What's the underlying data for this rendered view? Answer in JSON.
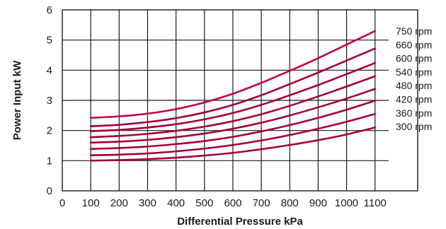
{
  "chart_data": {
    "type": "line",
    "title": "",
    "xlabel": "Differential Pressure kPa",
    "ylabel": "Power Input kW",
    "xlim": [
      0,
      1250
    ],
    "ylim": [
      0,
      6
    ],
    "x_ticks": [
      0,
      100,
      200,
      300,
      400,
      500,
      600,
      700,
      800,
      900,
      1000,
      1100
    ],
    "y_ticks": [
      0,
      1,
      2,
      3,
      4,
      5,
      6
    ],
    "grid": true,
    "x": [
      100,
      200,
      300,
      400,
      500,
      600,
      700,
      800,
      900,
      1000,
      1100
    ],
    "series": [
      {
        "name": "750 rpm",
        "color": "#c4003a",
        "values": [
          2.42,
          2.47,
          2.56,
          2.71,
          2.93,
          3.22,
          3.58,
          3.98,
          4.4,
          4.85,
          5.3
        ]
      },
      {
        "name": "660 rpm",
        "color": "#a50032",
        "values": [
          2.14,
          2.19,
          2.28,
          2.41,
          2.6,
          2.85,
          3.17,
          3.54,
          3.92,
          4.32,
          4.72
        ]
      },
      {
        "name": "600 rpm",
        "color": "#a50032",
        "values": [
          1.98,
          2.02,
          2.1,
          2.21,
          2.37,
          2.58,
          2.85,
          3.17,
          3.51,
          3.87,
          4.24
        ]
      },
      {
        "name": "540 rpm",
        "color": "#a50032",
        "values": [
          1.78,
          1.82,
          1.89,
          1.99,
          2.13,
          2.31,
          2.54,
          2.82,
          3.13,
          3.46,
          3.8
        ]
      },
      {
        "name": "480 rpm",
        "color": "#a50032",
        "values": [
          1.6,
          1.63,
          1.69,
          1.78,
          1.9,
          2.06,
          2.26,
          2.5,
          2.77,
          3.06,
          3.38
        ]
      },
      {
        "name": "420 rpm",
        "color": "#a50032",
        "values": [
          1.39,
          1.42,
          1.47,
          1.55,
          1.65,
          1.79,
          1.97,
          2.18,
          2.42,
          2.69,
          2.99
        ]
      },
      {
        "name": "360 rpm",
        "color": "#a50032",
        "values": [
          1.18,
          1.2,
          1.24,
          1.31,
          1.4,
          1.52,
          1.67,
          1.85,
          2.06,
          2.29,
          2.55
        ]
      },
      {
        "name": "300 rpm",
        "color": "#a50032",
        "values": [
          1.0,
          1.02,
          1.05,
          1.1,
          1.17,
          1.26,
          1.38,
          1.52,
          1.68,
          1.87,
          2.1
        ]
      }
    ],
    "label_highlight_color": "#c4003a"
  }
}
